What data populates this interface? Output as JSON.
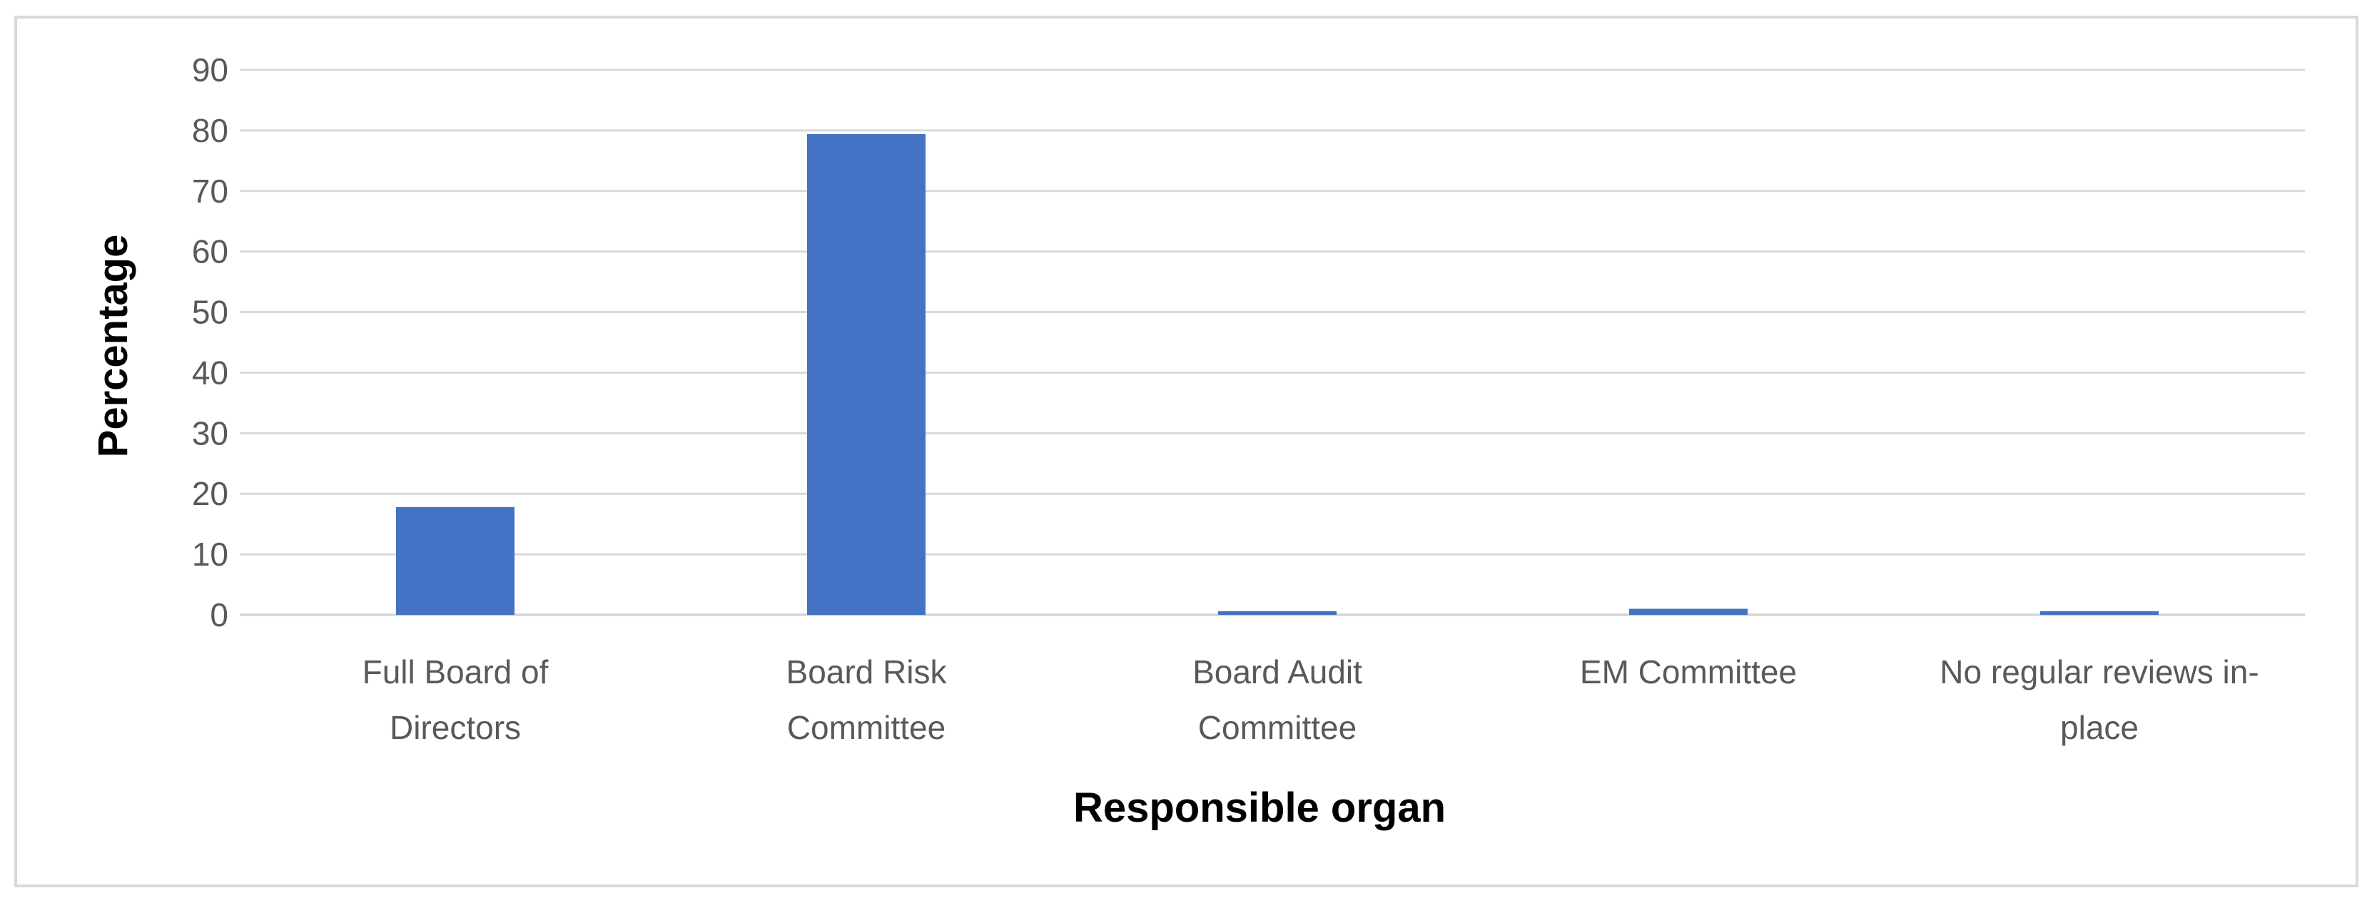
{
  "chart_data": {
    "type": "bar",
    "categories": [
      [
        "Full Board of",
        "Directors"
      ],
      [
        "Board Risk",
        "Committee"
      ],
      [
        "Board Audit",
        "Committee"
      ],
      [
        "EM Committee"
      ],
      [
        "No regular reviews in-",
        "place"
      ]
    ],
    "values": [
      17.8,
      79.4,
      0.6,
      1.0,
      0.6
    ],
    "xlabel": "Responsible organ",
    "ylabel": "Percentage",
    "ylim": [
      0,
      90
    ],
    "yticks": [
      0,
      10,
      20,
      30,
      40,
      50,
      60,
      70,
      80,
      90
    ],
    "grid": true,
    "colors": {
      "bar": "#4472C4",
      "grid": "#d9d9d9",
      "tick_text": "#595959",
      "axis_title": "#000000"
    }
  }
}
